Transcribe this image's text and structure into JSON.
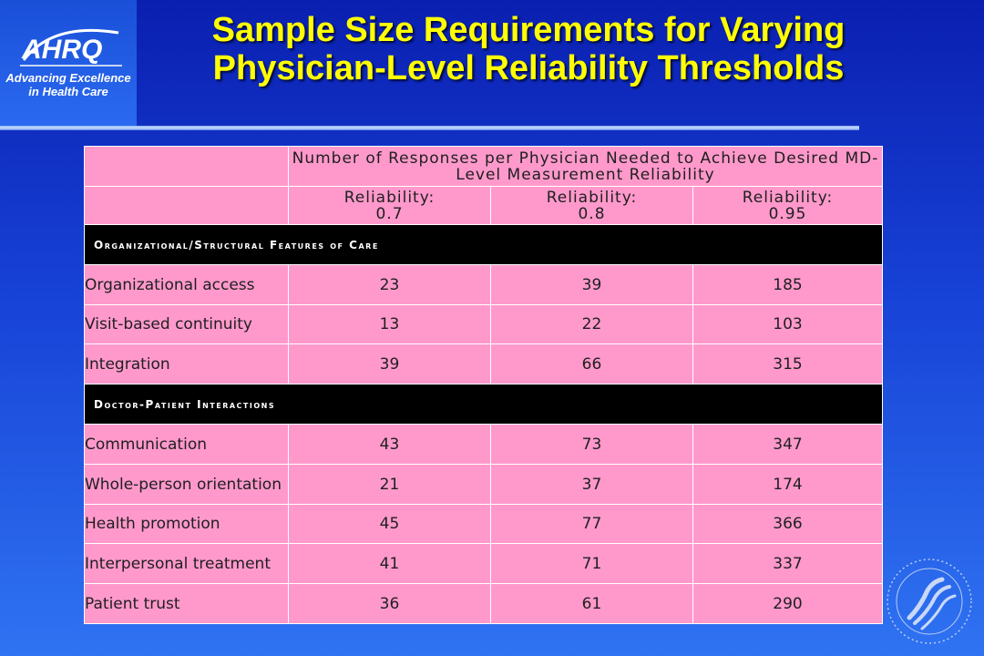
{
  "logo": {
    "wordmark": "AHRQ",
    "tagline": "Advancing Excellence in Health Care"
  },
  "title": {
    "line1": "Sample Size Requirements for Varying",
    "line2": "Physician-Level Reliability Thresholds"
  },
  "table": {
    "header_main": "Number of Responses per Physician Needed to Achieve Desired MD-Level Measurement Reliability",
    "columns": [
      {
        "label": "Reliability:",
        "value": "0.7"
      },
      {
        "label": "Reliability:",
        "value": "0.8"
      },
      {
        "label": "Reliability:",
        "value": "0.95"
      }
    ],
    "sections": [
      {
        "title": "Organizational/Structural Features of Care",
        "rows": [
          {
            "label": "Organizational access",
            "values": [
              "23",
              "39",
              "185"
            ]
          },
          {
            "label": "Visit-based continuity",
            "values": [
              "13",
              "22",
              "103"
            ]
          },
          {
            "label": "Integration",
            "values": [
              "39",
              "66",
              "315"
            ]
          }
        ]
      },
      {
        "title": "Doctor-Patient Interactions",
        "rows": [
          {
            "label": "Communication",
            "values": [
              "43",
              "73",
              "347"
            ]
          },
          {
            "label": "Whole-person orientation",
            "values": [
              "21",
              "37",
              "174"
            ]
          },
          {
            "label": "Health promotion",
            "values": [
              "45",
              "77",
              "366"
            ]
          },
          {
            "label": "Interpersonal treatment",
            "values": [
              "41",
              "71",
              "337"
            ]
          },
          {
            "label": "Patient trust",
            "values": [
              "36",
              "61",
              "290"
            ]
          }
        ]
      }
    ]
  },
  "colors": {
    "title": "#ffff00",
    "table_fill": "#ff99cc",
    "section_fill": "#000000"
  },
  "icons": {
    "hhs_seal": "hhs-seal-icon",
    "ahrq_logo": "ahrq-logo-icon"
  }
}
